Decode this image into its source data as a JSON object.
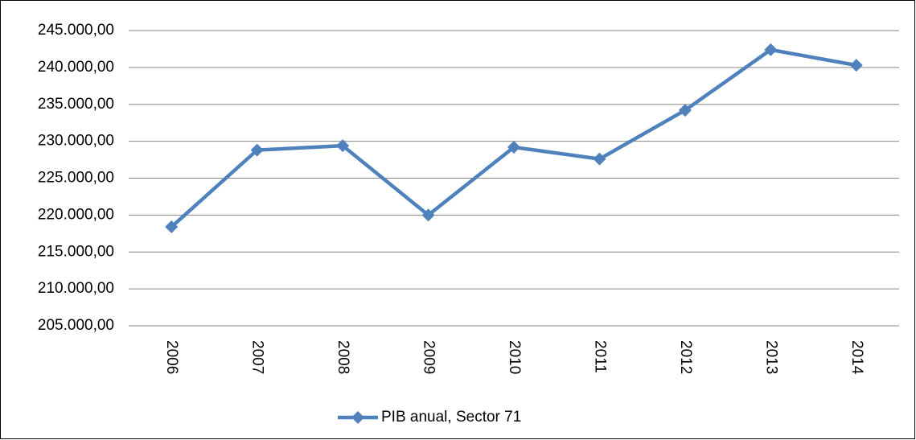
{
  "chart_data": {
    "type": "line",
    "categories": [
      "2006",
      "2007",
      "2008",
      "2009",
      "2010",
      "2011",
      "2012",
      "2013",
      "2014"
    ],
    "series": [
      {
        "name": "PIB anual, Sector 71",
        "color": "#4f81bd",
        "values": [
          218400,
          228800,
          229400,
          220000,
          229200,
          227600,
          234200,
          242400,
          240300
        ]
      }
    ],
    "ylim": [
      205000,
      245000
    ],
    "yticks": [
      {
        "value": 205000,
        "label": "205.000,00"
      },
      {
        "value": 210000,
        "label": "210.000,00"
      },
      {
        "value": 215000,
        "label": "215.000,00"
      },
      {
        "value": 220000,
        "label": "220.000,00"
      },
      {
        "value": 225000,
        "label": "225.000,00"
      },
      {
        "value": 230000,
        "label": "230.000,00"
      },
      {
        "value": 235000,
        "label": "235.000,00"
      },
      {
        "value": 240000,
        "label": "240.000,00"
      },
      {
        "value": 245000,
        "label": "245.000,00"
      }
    ],
    "grid": true,
    "legend": "bottom"
  }
}
